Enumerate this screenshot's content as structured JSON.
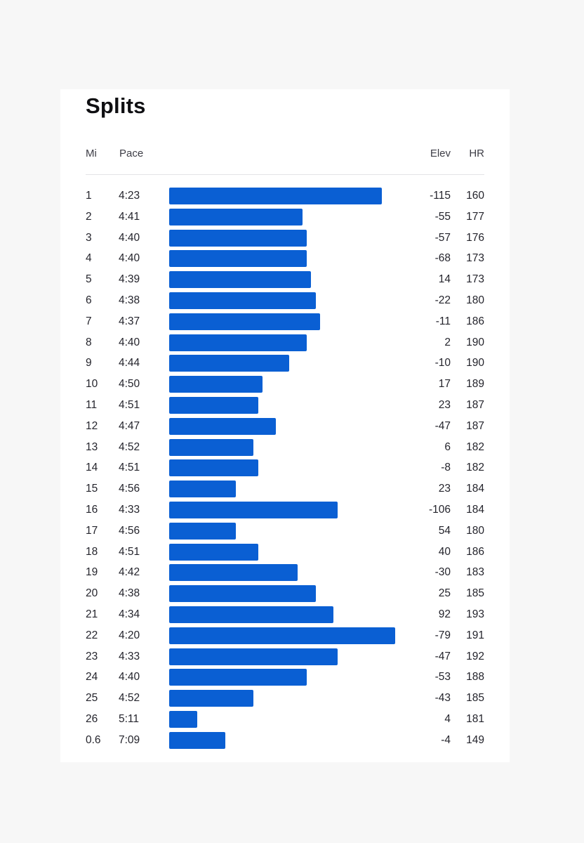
{
  "title": "Splits",
  "columns": {
    "mi": "Mi",
    "pace": "Pace",
    "elev": "Elev",
    "hr": "HR"
  },
  "bar_color": "#0a5fd3",
  "pace_scale": {
    "max_seconds": 262
  },
  "splits": [
    {
      "mi": "1",
      "pace": "4:23",
      "elev": "-115",
      "hr": "160"
    },
    {
      "mi": "2",
      "pace": "4:41",
      "elev": "-55",
      "hr": "177"
    },
    {
      "mi": "3",
      "pace": "4:40",
      "elev": "-57",
      "hr": "176"
    },
    {
      "mi": "4",
      "pace": "4:40",
      "elev": "-68",
      "hr": "173"
    },
    {
      "mi": "5",
      "pace": "4:39",
      "elev": "14",
      "hr": "173"
    },
    {
      "mi": "6",
      "pace": "4:38",
      "elev": "-22",
      "hr": "180"
    },
    {
      "mi": "7",
      "pace": "4:37",
      "elev": "-11",
      "hr": "186"
    },
    {
      "mi": "8",
      "pace": "4:40",
      "elev": "2",
      "hr": "190"
    },
    {
      "mi": "9",
      "pace": "4:44",
      "elev": "-10",
      "hr": "190"
    },
    {
      "mi": "10",
      "pace": "4:50",
      "elev": "17",
      "hr": "189"
    },
    {
      "mi": "11",
      "pace": "4:51",
      "elev": "23",
      "hr": "187"
    },
    {
      "mi": "12",
      "pace": "4:47",
      "elev": "-47",
      "hr": "187"
    },
    {
      "mi": "13",
      "pace": "4:52",
      "elev": "6",
      "hr": "182"
    },
    {
      "mi": "14",
      "pace": "4:51",
      "elev": "-8",
      "hr": "182"
    },
    {
      "mi": "15",
      "pace": "4:56",
      "elev": "23",
      "hr": "184"
    },
    {
      "mi": "16",
      "pace": "4:33",
      "elev": "-106",
      "hr": "184"
    },
    {
      "mi": "17",
      "pace": "4:56",
      "elev": "54",
      "hr": "180"
    },
    {
      "mi": "18",
      "pace": "4:51",
      "elev": "40",
      "hr": "186"
    },
    {
      "mi": "19",
      "pace": "4:42",
      "elev": "-30",
      "hr": "183"
    },
    {
      "mi": "20",
      "pace": "4:38",
      "elev": "25",
      "hr": "185"
    },
    {
      "mi": "21",
      "pace": "4:34",
      "elev": "92",
      "hr": "193"
    },
    {
      "mi": "22",
      "pace": "4:20",
      "elev": "-79",
      "hr": "191"
    },
    {
      "mi": "23",
      "pace": "4:33",
      "elev": "-47",
      "hr": "192"
    },
    {
      "mi": "24",
      "pace": "4:40",
      "elev": "-53",
      "hr": "188"
    },
    {
      "mi": "25",
      "pace": "4:52",
      "elev": "-43",
      "hr": "185"
    },
    {
      "mi": "26",
      "pace": "5:11",
      "elev": "4",
      "hr": "181"
    },
    {
      "mi": "0.6",
      "pace": "7:09",
      "elev": "-4",
      "hr": "149"
    }
  ]
}
